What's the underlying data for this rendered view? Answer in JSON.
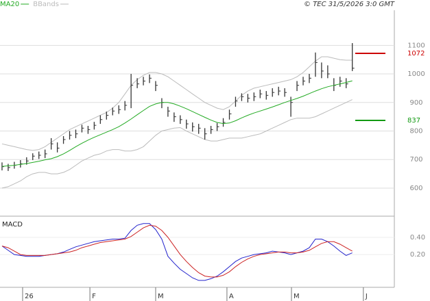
{
  "chart_data": {
    "type": "ohlc",
    "copyright": "© TEC 31/5/2026 3:0 GMT",
    "high": [
      690,
      685,
      692,
      698,
      708,
      722,
      728,
      735,
      775,
      760,
      782,
      800,
      805,
      822,
      818,
      832,
      855,
      868,
      882,
      890,
      905,
      1000,
      985,
      990,
      998,
      975,
      915,
      885,
      865,
      855,
      840,
      830,
      825,
      810,
      818,
      828,
      845,
      875,
      920,
      932,
      930,
      935,
      945,
      940,
      950,
      955,
      950,
      920,
      975,
      990,
      1000,
      1075,
      1040,
      1030,
      985,
      990,
      985,
      1108
    ],
    "low": [
      662,
      660,
      668,
      672,
      682,
      698,
      702,
      705,
      735,
      725,
      755,
      770,
      775,
      795,
      790,
      805,
      825,
      840,
      855,
      860,
      872,
      880,
      950,
      960,
      968,
      940,
      880,
      850,
      832,
      825,
      808,
      798,
      790,
      770,
      790,
      800,
      815,
      840,
      885,
      905,
      900,
      905,
      915,
      910,
      920,
      925,
      920,
      850,
      940,
      960,
      968,
      990,
      985,
      985,
      940,
      955,
      950,
      1010
    ],
    "close": [
      675,
      672,
      680,
      685,
      695,
      712,
      715,
      720,
      755,
      740,
      770,
      785,
      790,
      810,
      805,
      820,
      840,
      855,
      870,
      875,
      890,
      960,
      965,
      975,
      985,
      960,
      900,
      870,
      850,
      840,
      825,
      815,
      810,
      790,
      805,
      815,
      830,
      860,
      905,
      920,
      915,
      920,
      930,
      925,
      935,
      940,
      935,
      900,
      960,
      975,
      985,
      1040,
      1010,
      1000,
      960,
      975,
      965,
      1020
    ],
    "bar_color": "#333333",
    "overlays": [
      {
        "name": "MA20",
        "color": "#22aa22",
        "values": [
          676,
          678,
          680,
          683,
          686,
          690,
          694,
          699,
          703,
          710,
          720,
          732,
          745,
          757,
          768,
          778,
          787,
          796,
          805,
          815,
          828,
          842,
          857,
          872,
          886,
          895,
          900,
          900,
          895,
          887,
          878,
          868,
          858,
          848,
          838,
          830,
          826,
          828,
          836,
          846,
          855,
          863,
          870,
          877,
          884,
          892,
          900,
          907,
          914,
          922,
          931,
          940,
          948,
          955,
          960,
          965,
          970,
          976
        ]
      },
      {
        "name": "BBands",
        "color": "#bbbbbb",
        "upper": [
          755,
          750,
          745,
          740,
          735,
          732,
          735,
          745,
          760,
          775,
          790,
          805,
          815,
          825,
          835,
          845,
          855,
          865,
          880,
          900,
          930,
          960,
          980,
          995,
          1005,
          1005,
          1000,
          990,
          975,
          960,
          945,
          930,
          915,
          900,
          890,
          880,
          875,
          885,
          905,
          925,
          940,
          950,
          955,
          960,
          965,
          970,
          975,
          980,
          990,
          1005,
          1025,
          1045,
          1060,
          1060,
          1055,
          1050,
          1048,
          1048
        ],
        "lower": [
          600,
          605,
          615,
          625,
          640,
          650,
          655,
          655,
          650,
          650,
          655,
          665,
          680,
          695,
          705,
          715,
          720,
          730,
          735,
          735,
          730,
          730,
          735,
          745,
          765,
          785,
          800,
          805,
          810,
          812,
          800,
          790,
          780,
          770,
          765,
          765,
          770,
          775,
          775,
          775,
          780,
          785,
          790,
          800,
          810,
          820,
          830,
          840,
          845,
          845,
          845,
          850,
          860,
          870,
          880,
          890,
          900,
          910
        ]
      }
    ],
    "levels": [
      {
        "value": 1072,
        "color": "#cc0000"
      },
      {
        "value": 837,
        "color": "#119911"
      }
    ],
    "xlim": [
      -0.33,
      63.84
    ],
    "xticks": [
      {
        "value": 3.35,
        "label": "26"
      },
      {
        "value": 14.3,
        "label": "F"
      },
      {
        "value": 25.0,
        "label": "M"
      },
      {
        "value": 36.6,
        "label": "A"
      },
      {
        "value": 47.1,
        "label": "M"
      },
      {
        "value": 58.8,
        "label": "J"
      }
    ],
    "ylim": [
      504,
      1223
    ],
    "yticks": [
      600,
      700,
      800,
      900,
      1000,
      1100
    ],
    "grid": true,
    "macd": {
      "title": "MACD",
      "ylim": [
        -0.18,
        0.63
      ],
      "yticks": [
        {
          "value": 0.2,
          "label": "0.20"
        },
        {
          "value": 0.4,
          "label": "0.40"
        }
      ],
      "series": [
        {
          "color": "#2222cc",
          "values": [
            0.3,
            0.25,
            0.2,
            0.19,
            0.18,
            0.18,
            0.18,
            0.19,
            0.2,
            0.21,
            0.23,
            0.26,
            0.29,
            0.31,
            0.33,
            0.35,
            0.36,
            0.37,
            0.38,
            0.38,
            0.39,
            0.48,
            0.54,
            0.56,
            0.56,
            0.49,
            0.38,
            0.18,
            0.1,
            0.03,
            -0.02,
            -0.07,
            -0.1,
            -0.1,
            -0.08,
            -0.05,
            0,
            0.06,
            0.12,
            0.16,
            0.18,
            0.2,
            0.21,
            0.22,
            0.24,
            0.23,
            0.22,
            0.2,
            0.22,
            0.24,
            0.28,
            0.38,
            0.38,
            0.35,
            0.3,
            0.24,
            0.19,
            0.22
          ]
        },
        {
          "color": "#cc2222",
          "values": [
            0.3,
            0.28,
            0.24,
            0.2,
            0.19,
            0.19,
            0.19,
            0.19,
            0.2,
            0.21,
            0.22,
            0.23,
            0.25,
            0.28,
            0.3,
            0.32,
            0.34,
            0.35,
            0.36,
            0.37,
            0.38,
            0.41,
            0.46,
            0.51,
            0.54,
            0.53,
            0.48,
            0.4,
            0.3,
            0.2,
            0.12,
            0.05,
            -0.01,
            -0.05,
            -0.06,
            -0.06,
            -0.04,
            0,
            0.06,
            0.11,
            0.15,
            0.18,
            0.2,
            0.21,
            0.22,
            0.23,
            0.23,
            0.22,
            0.22,
            0.23,
            0.25,
            0.29,
            0.33,
            0.35,
            0.35,
            0.32,
            0.28,
            0.24
          ]
        }
      ]
    }
  }
}
